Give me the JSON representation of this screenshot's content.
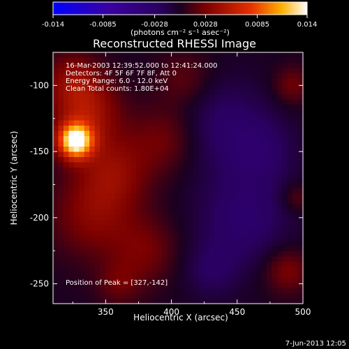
{
  "footer_timestamp": "7-Jun-2013 12:05",
  "colorbar": {
    "tick_labels": [
      "-0.014",
      "-0.0085",
      "-0.0028",
      "0.0028",
      "0.0085",
      "0.014"
    ],
    "tick_values": [
      -0.014,
      -0.0085,
      -0.0028,
      0.0028,
      0.0085,
      0.014
    ],
    "range": [
      -0.014,
      0.014
    ],
    "units_label": "(photons cm⁻² s⁻¹ asec⁻²)",
    "colors": [
      "#0000ff",
      "#3a00a0",
      "#2a0060",
      "#1a0020",
      "#7a0000",
      "#e83000",
      "#ffb000",
      "#ffffff"
    ]
  },
  "chart_data": {
    "type": "heatmap",
    "title": "Reconstructed RHESSI Image",
    "xlabel": "Heliocentric X (arcsec)",
    "ylabel": "Heliocentric Y (arcsec)",
    "xlim": [
      310,
      500
    ],
    "ylim": [
      -265,
      -75
    ],
    "x_ticks": [
      350,
      400,
      450,
      500
    ],
    "y_ticks": [
      -250,
      -200,
      -150,
      -100
    ],
    "annotations": [
      "16-Mar-2003 12:39:52.000 to 12:41:24.000",
      "Detectors: 4F 5F 6F 7F 8F, Att 0",
      "Energy Range: 6.0 - 12.0 keV",
      "Clean    Total counts: 1.80E+04"
    ],
    "peak_label": "Position of Peak = [327,-142]",
    "peak": {
      "x": 327,
      "y": -142,
      "value": 0.014
    },
    "sources": [
      {
        "x": 327,
        "y": -142,
        "sigma": 9,
        "amp": 0.014
      },
      {
        "x": 335,
        "y": -120,
        "sigma": 18,
        "amp": 0.0045
      },
      {
        "x": 355,
        "y": -165,
        "sigma": 20,
        "amp": 0.0035
      },
      {
        "x": 340,
        "y": -200,
        "sigma": 22,
        "amp": 0.003
      },
      {
        "x": 325,
        "y": -95,
        "sigma": 15,
        "amp": 0.003
      },
      {
        "x": 395,
        "y": -140,
        "sigma": 18,
        "amp": 0.0025
      },
      {
        "x": 380,
        "y": -225,
        "sigma": 18,
        "amp": 0.0025
      },
      {
        "x": 410,
        "y": -95,
        "sigma": 15,
        "amp": 0.002
      },
      {
        "x": 360,
        "y": -250,
        "sigma": 12,
        "amp": 0.002
      },
      {
        "x": 492,
        "y": -100,
        "sigma": 10,
        "amp": 0.0025
      },
      {
        "x": 488,
        "y": -240,
        "sigma": 12,
        "amp": 0.003
      },
      {
        "x": 495,
        "y": -185,
        "sigma": 8,
        "amp": 0.002
      },
      {
        "x": 440,
        "y": -130,
        "sigma": 25,
        "amp": -0.0025
      },
      {
        "x": 455,
        "y": -200,
        "sigma": 25,
        "amp": -0.003
      },
      {
        "x": 470,
        "y": -150,
        "sigma": 18,
        "amp": -0.002
      },
      {
        "x": 430,
        "y": -240,
        "sigma": 15,
        "amp": -0.002
      }
    ]
  }
}
